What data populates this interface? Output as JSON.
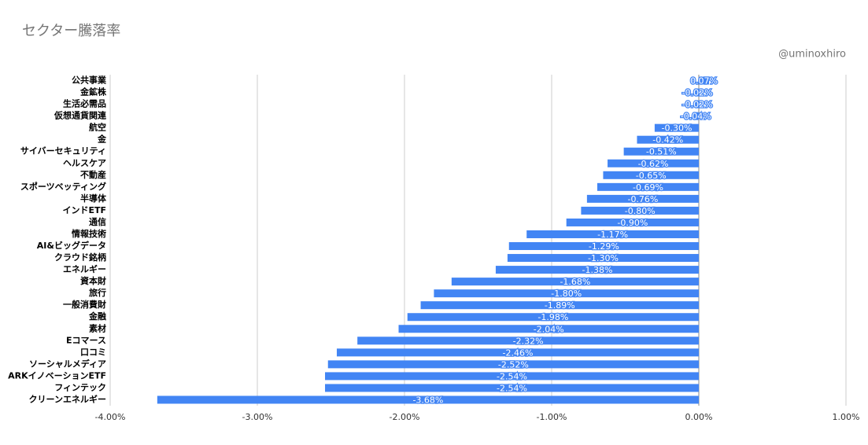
{
  "chart_data": {
    "type": "bar",
    "orientation": "horizontal",
    "title": "セクター騰落率",
    "credit": "@uminoxhiro",
    "categories": [
      "公共事業",
      "金鉱株",
      "生活必需品",
      "仮想通貨関連",
      "航空",
      "金",
      "サイバーセキュリティ",
      "ヘルスケア",
      "不動産",
      "スポーツベッティング",
      "半導体",
      "インドETF",
      "通信",
      "情報技術",
      "AI&ビッグデータ",
      "クラウド銘柄",
      "エネルギー",
      "資本財",
      "旅行",
      "一般消費財",
      "金融",
      "素材",
      "Eコマース",
      "口コミ",
      "ソーシャルメディア",
      "ARKイノベーションETF",
      "フィンテック",
      "クリーンエネルギー"
    ],
    "values": [
      0.07,
      -0.02,
      -0.02,
      -0.04,
      -0.3,
      -0.42,
      -0.51,
      -0.62,
      -0.65,
      -0.69,
      -0.76,
      -0.8,
      -0.9,
      -1.17,
      -1.29,
      -1.3,
      -1.38,
      -1.68,
      -1.8,
      -1.89,
      -1.98,
      -2.04,
      -2.32,
      -2.46,
      -2.52,
      -2.54,
      -2.54,
      -3.68
    ],
    "value_labels": [
      "0.07%",
      "-0.02%",
      "-0.02%",
      "-0.04%",
      "-0.30%",
      "-0.42%",
      "-0.51%",
      "-0.62%",
      "-0.65%",
      "-0.69%",
      "-0.76%",
      "-0.80%",
      "-0.90%",
      "-1.17%",
      "-1.29%",
      "-1.30%",
      "-1.38%",
      "-1.68%",
      "-1.80%",
      "-1.89%",
      "-1.98%",
      "-2.04%",
      "-2.32%",
      "-2.46%",
      "-2.52%",
      "-2.54%",
      "-2.54%",
      "-3.68%"
    ],
    "color": "#4285f4",
    "xlim": [
      -4,
      1
    ],
    "xticks": [
      {
        "value": -4,
        "label": "-4.00%"
      },
      {
        "value": -3,
        "label": "-3.00%"
      },
      {
        "value": -2,
        "label": "-2.00%"
      },
      {
        "value": -1,
        "label": "-1.00%"
      },
      {
        "value": 0,
        "label": "0.00%"
      },
      {
        "value": 1,
        "label": "1.00%"
      }
    ],
    "grid": true
  }
}
